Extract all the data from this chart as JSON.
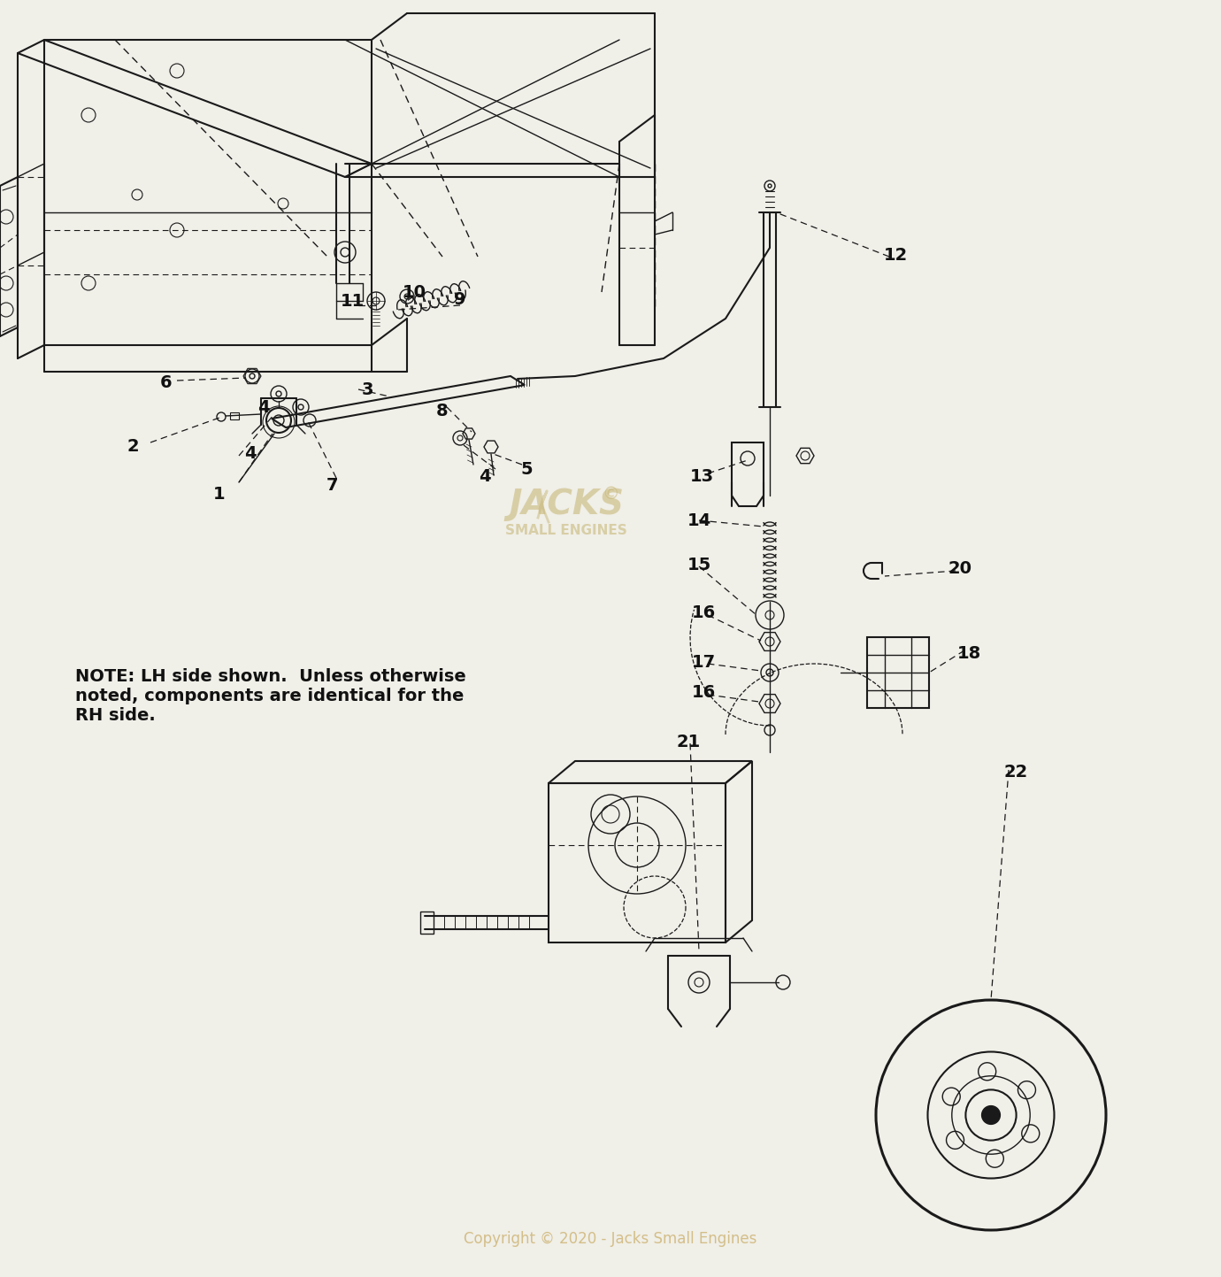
{
  "background_color": "#f0efe8",
  "line_color": "#1a1a1a",
  "text_color": "#111111",
  "copyright_text": "Copyright © 2020 - Jacks Small Engines",
  "note_text": "NOTE: LH side shown.  Unless otherwise\nnoted, components are identical for the\nRH side.",
  "figsize": [
    13.8,
    14.43
  ],
  "dpi": 100
}
